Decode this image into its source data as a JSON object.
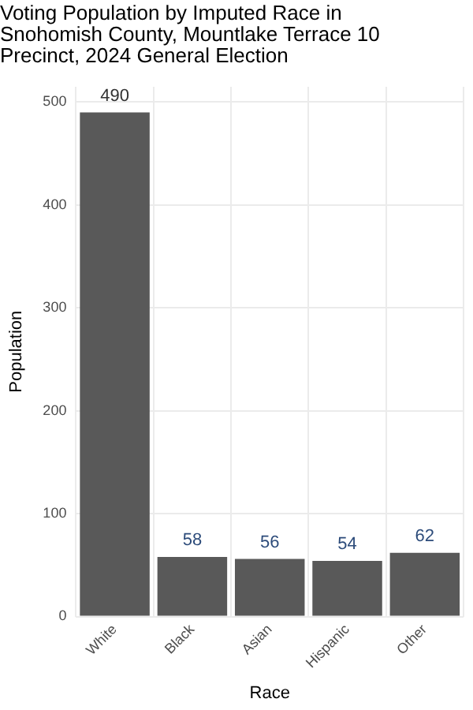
{
  "chart_data": {
    "type": "bar",
    "title": "Voting Population by Imputed Race in Snohomish County, Mountlake Terrace 10 Precinct, 2024 General Election",
    "categories": [
      "White",
      "Black",
      "Asian",
      "Hispanic",
      "Other"
    ],
    "values": [
      490,
      58,
      56,
      54,
      62
    ],
    "color": "#595959",
    "xlabel": "Race",
    "ylabel": "Population",
    "ylim": [
      0,
      515
    ],
    "yticks": [
      0,
      100,
      200,
      300,
      400,
      500
    ],
    "grid": true,
    "data_labels": true
  }
}
